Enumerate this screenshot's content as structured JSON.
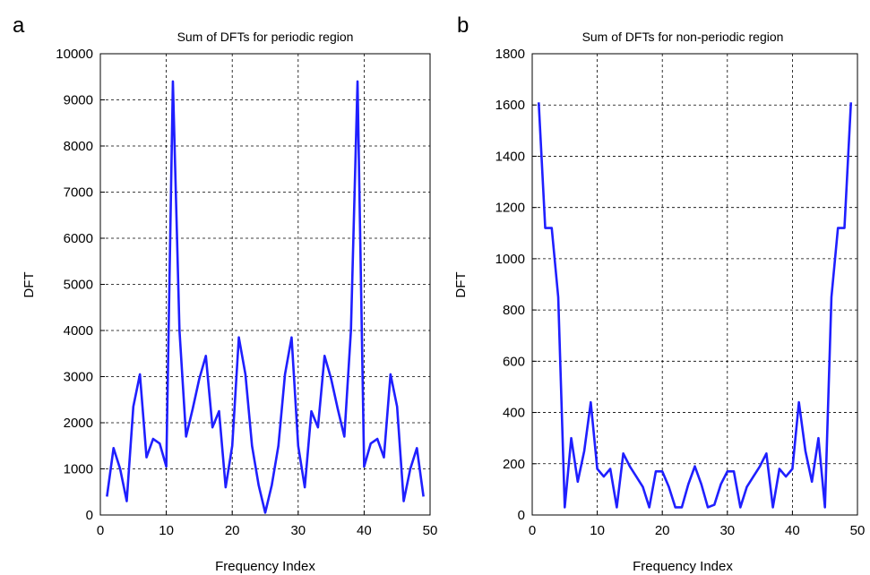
{
  "chart_data": [
    {
      "type": "line",
      "panel_letter": "a",
      "title": "Sum of DFTs for periodic region",
      "xlabel": "Frequency Index",
      "ylabel": "DFT",
      "xlim": [
        0,
        50
      ],
      "ylim": [
        0,
        10000
      ],
      "xticks": [
        0,
        10,
        20,
        30,
        40,
        50
      ],
      "yticks": [
        0,
        1000,
        2000,
        3000,
        4000,
        5000,
        6000,
        7000,
        8000,
        9000,
        10000
      ],
      "grid": true,
      "line_color": "#1f1fff",
      "series": [
        {
          "x": [
            1,
            2,
            3,
            4,
            5,
            6,
            7,
            8,
            9,
            10,
            11,
            12,
            13,
            14,
            15,
            16,
            17,
            18,
            19,
            20,
            21,
            22,
            23,
            24,
            25,
            26,
            27,
            28,
            29,
            30,
            31,
            32,
            33,
            34,
            35,
            36,
            37,
            38,
            39,
            40,
            41,
            42,
            43,
            44,
            45,
            46,
            47,
            48,
            49
          ],
          "values": [
            400,
            1450,
            1000,
            300,
            2350,
            3050,
            1250,
            1650,
            1550,
            1050,
            9400,
            4000,
            1700,
            2300,
            2950,
            3450,
            1900,
            2250,
            600,
            1500,
            3850,
            3050,
            1500,
            650,
            50,
            650,
            1500,
            3050,
            3850,
            1500,
            600,
            2250,
            1900,
            3450,
            2950,
            2300,
            1700,
            4000,
            9400,
            1050,
            1550,
            1650,
            1250,
            3050,
            2350,
            300,
            1000,
            1450,
            400
          ]
        }
      ]
    },
    {
      "type": "line",
      "panel_letter": "b",
      "title": "Sum of DFTs for non-periodic region",
      "xlabel": "Frequency Index",
      "ylabel": "DFT",
      "xlim": [
        0,
        50
      ],
      "ylim": [
        0,
        1800
      ],
      "xticks": [
        0,
        10,
        20,
        30,
        40,
        50
      ],
      "yticks": [
        0,
        200,
        400,
        600,
        800,
        1000,
        1200,
        1400,
        1600,
        1800
      ],
      "grid": true,
      "line_color": "#1f1fff",
      "series": [
        {
          "x": [
            1,
            2,
            3,
            4,
            5,
            6,
            7,
            8,
            9,
            10,
            11,
            12,
            13,
            14,
            15,
            16,
            17,
            18,
            19,
            20,
            21,
            22,
            23,
            24,
            25,
            26,
            27,
            28,
            29,
            30,
            31,
            32,
            33,
            34,
            35,
            36,
            37,
            38,
            39,
            40,
            41,
            42,
            43,
            44,
            45,
            46,
            47,
            48,
            49
          ],
          "values": [
            1610,
            1120,
            1120,
            850,
            30,
            300,
            130,
            250,
            440,
            180,
            150,
            180,
            30,
            240,
            190,
            150,
            110,
            30,
            170,
            170,
            110,
            30,
            30,
            120,
            190,
            120,
            30,
            40,
            120,
            170,
            170,
            30,
            110,
            150,
            190,
            240,
            30,
            180,
            150,
            180,
            440,
            250,
            130,
            300,
            30,
            850,
            1120,
            1120,
            1610
          ]
        }
      ]
    }
  ]
}
